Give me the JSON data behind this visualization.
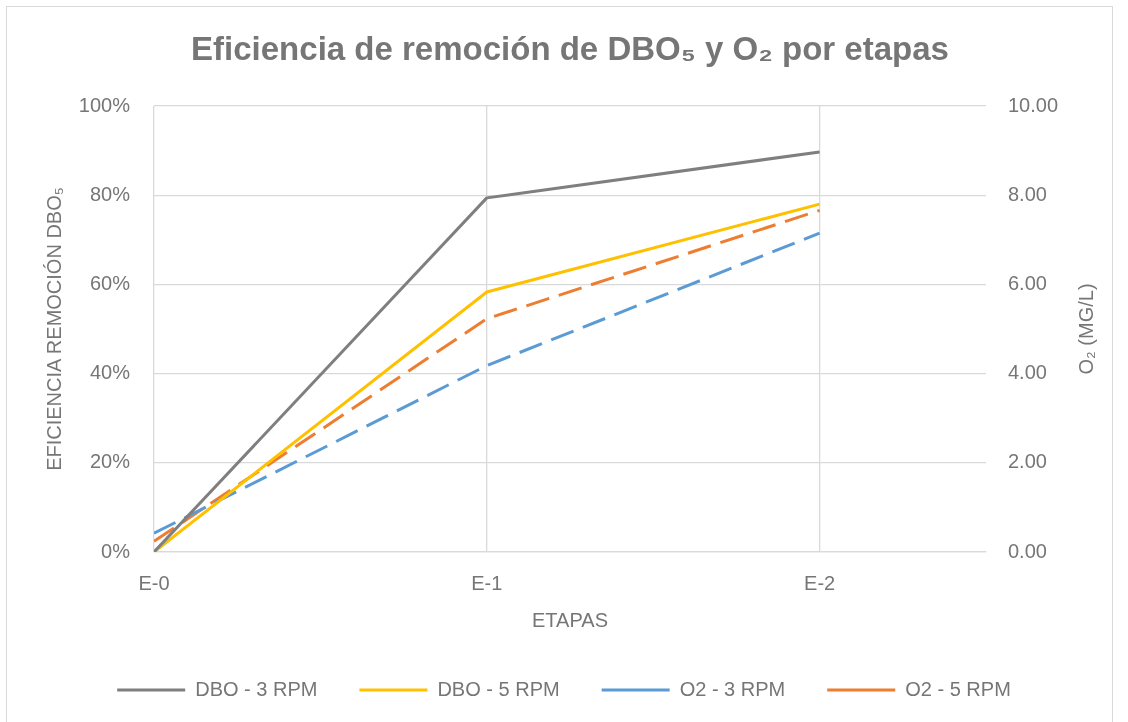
{
  "chart_data": {
    "type": "line",
    "title": "Eficiencia de remoción de DBO₅ y O₂ por etapas",
    "xlabel": "ETAPAS",
    "ylabel": "EFICIENCIA REMOCIÓN DBO₅",
    "y2label": "O₂ (MG/L)",
    "categories": [
      "E-0",
      "E-1",
      "E-2"
    ],
    "ylim": [
      0,
      100
    ],
    "yticks": [
      {
        "value": 0,
        "label": "0%"
      },
      {
        "value": 20,
        "label": "20%"
      },
      {
        "value": 40,
        "label": "40%"
      },
      {
        "value": 60,
        "label": "60%"
      },
      {
        "value": 80,
        "label": "80%"
      },
      {
        "value": 100,
        "label": "100%"
      }
    ],
    "y2lim": [
      0,
      10
    ],
    "y2ticks": [
      {
        "value": 0,
        "label": "0.00"
      },
      {
        "value": 2,
        "label": "2.00"
      },
      {
        "value": 4,
        "label": "4.00"
      },
      {
        "value": 6,
        "label": "6.00"
      },
      {
        "value": 8,
        "label": "8.00"
      },
      {
        "value": 10,
        "label": "10.00"
      }
    ],
    "series": [
      {
        "name": "DBO - 3 RPM",
        "color": "#7f7f7f",
        "values": [
          0,
          79.4,
          89.7
        ],
        "line_style": "solid"
      },
      {
        "name": "DBO - 5 RPM",
        "color": "#ffc000",
        "values": [
          0,
          58.3,
          78.0
        ],
        "line_style": "solid"
      },
      {
        "name": "O2 - 3 RPM",
        "color": "#5b9bd5",
        "values": [
          0.42,
          4.18,
          7.15
        ],
        "axis": "y2",
        "line_style": "dashed"
      },
      {
        "name": "O2 - 5 RPM",
        "color": "#ed7d31",
        "values": [
          0.24,
          5.23,
          7.66
        ],
        "axis": "y2",
        "line_style": "dashed"
      }
    ],
    "grid": true,
    "legend": "bottom",
    "marker": "none"
  }
}
